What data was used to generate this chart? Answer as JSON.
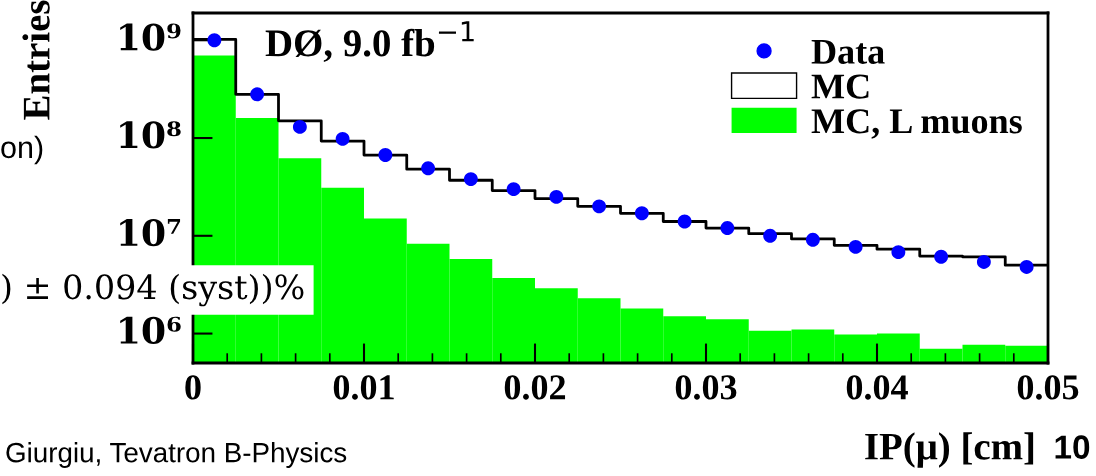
{
  "chart_data": {
    "type": "histogram",
    "xlabel": "IP(μ) [cm]",
    "ylabel": "Entries",
    "bins": [
      0,
      0.0025,
      0.005,
      0.0075,
      0.01,
      0.0125,
      0.015,
      0.0175,
      0.02,
      0.0225,
      0.025,
      0.0275,
      0.03,
      0.0325,
      0.035,
      0.0375,
      0.04,
      0.0425,
      0.045,
      0.0475,
      0.05
    ],
    "series": [
      {
        "name": "Data",
        "type": "scatter",
        "color": "#0000ff",
        "marker": "circle",
        "x": [
          0.00125,
          0.00375,
          0.00625,
          0.00875,
          0.01125,
          0.01375,
          0.01625,
          0.01875,
          0.02125,
          0.02375,
          0.02625,
          0.02875,
          0.03125,
          0.03375,
          0.03625,
          0.03875,
          0.04125,
          0.04375,
          0.04625,
          0.04875
        ],
        "values": [
          1000000000.0,
          280000000.0,
          130000000.0,
          98000000.0,
          67000000.0,
          49000000.0,
          38000000.0,
          30000000.0,
          25000000.0,
          20000000.0,
          17000000.0,
          14000000.0,
          12000000.0,
          10000000.0,
          9100000.0,
          7700000.0,
          6800000.0,
          6100000.0,
          5400000.0,
          4800000.0
        ]
      },
      {
        "name": "MC",
        "type": "step",
        "color": "#000000",
        "x": [
          0,
          0.0025,
          0.005,
          0.0075,
          0.01,
          0.0125,
          0.015,
          0.0175,
          0.02,
          0.0225,
          0.025,
          0.0275,
          0.03,
          0.0325,
          0.035,
          0.0375,
          0.04,
          0.0425,
          0.045,
          0.0475,
          0.05
        ],
        "values": [
          1020000000.0,
          280000000.0,
          150000000.0,
          93000000.0,
          67000000.0,
          48000000.0,
          37000000.0,
          29000000.0,
          24000000.0,
          20000000.0,
          17000000.0,
          14000000.0,
          12000000.0,
          10500000.0,
          9300000.0,
          8000000.0,
          7300000.0,
          6200000.0,
          6100000.0,
          5000000.0,
          5000000.0
        ]
      },
      {
        "name": "MC, L muons",
        "color": "#00ff00",
        "values": [
          700000000.0,
          160000000.0,
          62000000.0,
          31000000.0,
          15000000.0,
          8300000.0,
          5800000.0,
          3700000.0,
          2900000.0,
          2300000.0,
          1800000.0,
          1500000.0,
          1400000.0,
          1070000.0,
          1100000.0,
          980000.0,
          1000000.0,
          700000.0,
          770000.0,
          750000.0
        ]
      }
    ],
    "log": "y",
    "xlim": [
      0,
      0.05
    ],
    "ylim": [
      500000.0,
      1900000000.0
    ],
    "xticks": [
      0,
      0.01,
      0.02,
      0.03,
      0.04,
      0.05
    ],
    "yticks": [
      {
        "value": 1000000.0,
        "label": "10⁶"
      },
      {
        "value": 10000000.0,
        "label": "10⁷"
      },
      {
        "value": 100000000.0,
        "label": "10⁸"
      },
      {
        "value": 1000000000.0,
        "label": "10⁹"
      }
    ],
    "legend": "top right",
    "grid": false,
    "annotations": [
      "DØ, 9.0 fb$^{−1}$",
      "on)",
      ") ± 0.094 (syst))%",
      "Giurgiu, Tevatron B-Physics",
      "10"
    ]
  }
}
